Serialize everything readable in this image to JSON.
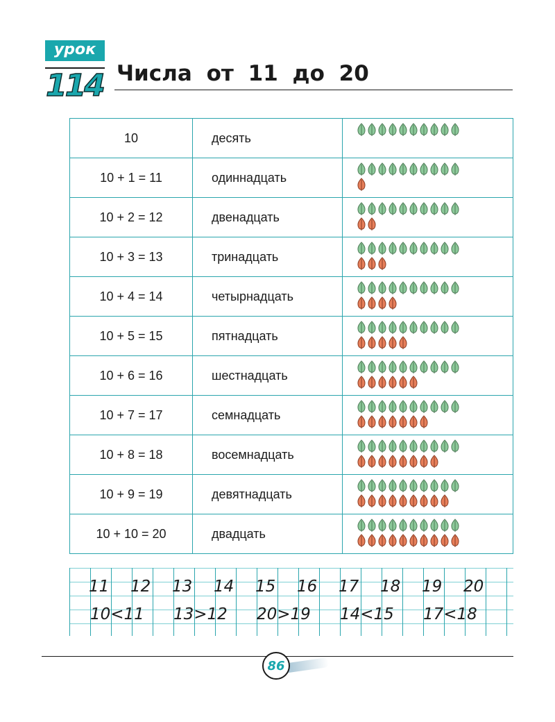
{
  "lesson": {
    "label": "урок",
    "number": "114"
  },
  "title": "Числа от 11 до 20",
  "rows": [
    {
      "equation": "10",
      "word": "десять",
      "green": 10,
      "red": 0
    },
    {
      "equation": "10 + 1 = 11",
      "word": "одиннадцать",
      "green": 10,
      "red": 1
    },
    {
      "equation": "10 + 2 = 12",
      "word": "двенадцать",
      "green": 10,
      "red": 2
    },
    {
      "equation": "10 + 3 = 13",
      "word": "тринадцать",
      "green": 10,
      "red": 3
    },
    {
      "equation": "10 + 4 = 14",
      "word": "четырнадцать",
      "green": 10,
      "red": 4
    },
    {
      "equation": "10 + 5 = 15",
      "word": "пятнадцать",
      "green": 10,
      "red": 5
    },
    {
      "equation": "10 + 6 = 16",
      "word": "шестнадцать",
      "green": 10,
      "red": 6
    },
    {
      "equation": "10 + 7 = 17",
      "word": "семнадцать",
      "green": 10,
      "red": 7
    },
    {
      "equation": "10 + 8 = 18",
      "word": "восемнадцать",
      "green": 10,
      "red": 8
    },
    {
      "equation": "10 + 9 = 19",
      "word": "девятнадцать",
      "green": 10,
      "red": 9
    },
    {
      "equation": "10 + 10 = 20",
      "word": "двадцать",
      "green": 10,
      "red": 10
    }
  ],
  "colors": {
    "accent": "#1aa7ad",
    "table_border": "#2aa5ad",
    "leaf_green": "#8cc99a",
    "leaf_red": "#e77f5a"
  },
  "copybook": {
    "numbers": [
      "11",
      "12",
      "13",
      "14",
      "15",
      "16",
      "17",
      "18",
      "19",
      "20"
    ],
    "comparisons": [
      "10<11",
      "13>12",
      "20>19",
      "14<15",
      "17<18"
    ]
  },
  "page_number": "86"
}
